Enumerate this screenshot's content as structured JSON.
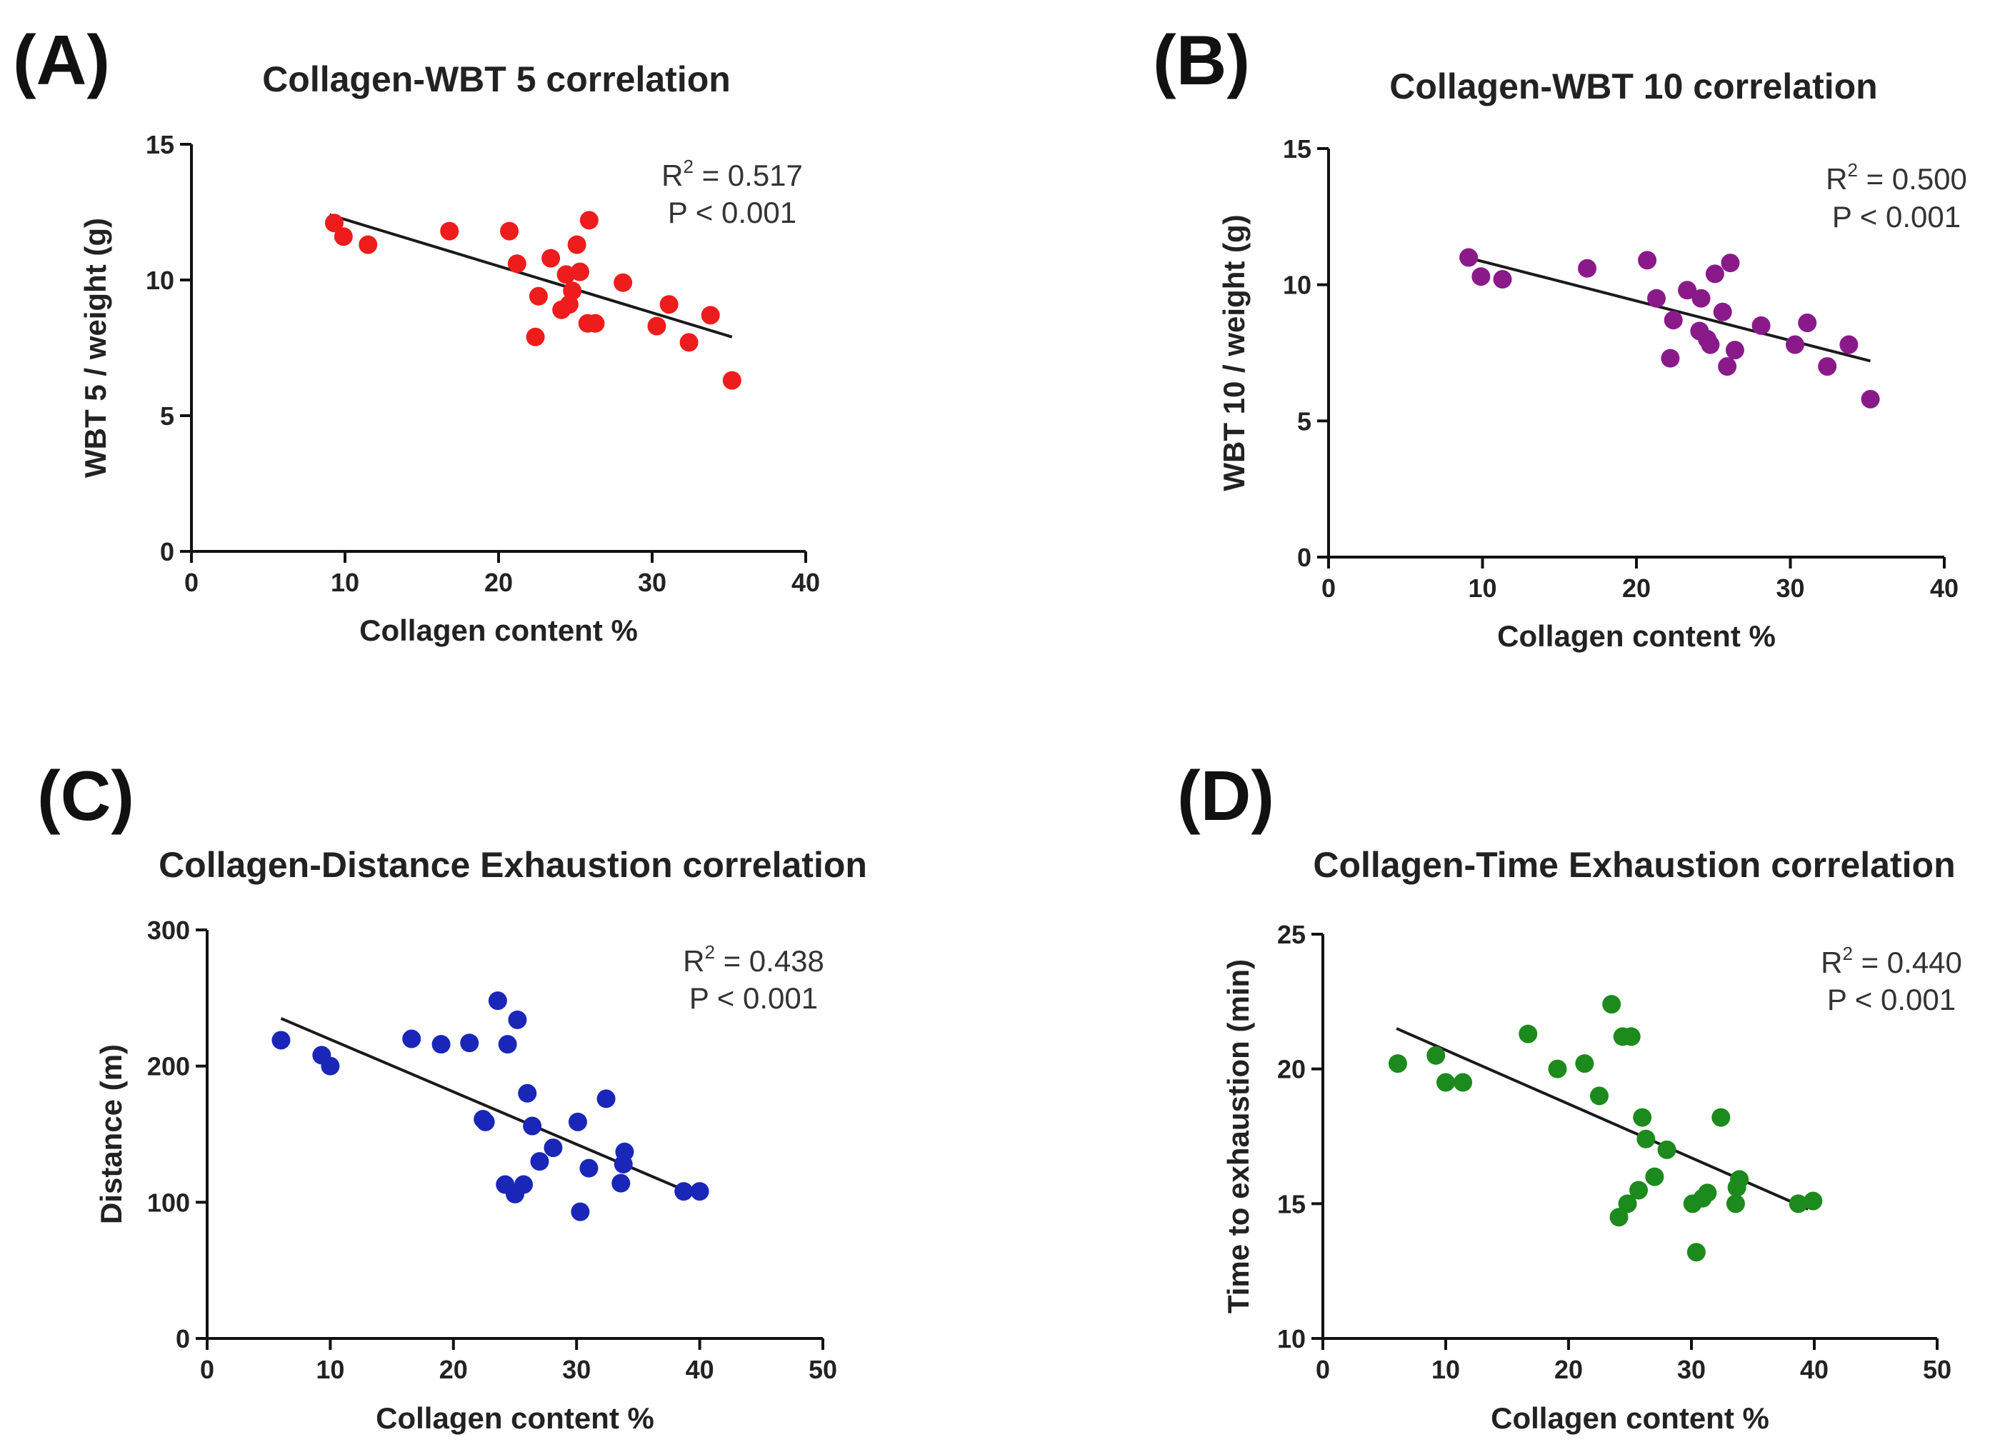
{
  "chart_data": [
    {
      "type": "scatter",
      "panel_label": "(A)",
      "title": "Collagen-WBT 5 correlation",
      "xlabel": "Collagen content %",
      "ylabel": "WBT 5 / weight (g)",
      "xlim": [
        0,
        40
      ],
      "ylim": [
        0,
        15
      ],
      "xticks": [
        0,
        10,
        20,
        30,
        40
      ],
      "yticks": [
        0,
        5,
        10,
        15
      ],
      "color": "#ee1c1c",
      "stats": {
        "r2_prefix": "R",
        "r2_sup": "2",
        "r2_value": " = 0.517",
        "p_text": "P < 0.001"
      },
      "fit": {
        "x": [
          9,
          35.2
        ],
        "y": [
          12.4,
          7.9
        ]
      },
      "x": [
        9.3,
        9.9,
        11.5,
        16.8,
        20.7,
        21.2,
        22.4,
        22.6,
        23.4,
        24.1,
        24.4,
        24.6,
        24.8,
        25.1,
        25.3,
        25.8,
        25.9,
        26.3,
        28.1,
        30.3,
        31.1,
        32.4,
        33.8,
        35.2
      ],
      "y": [
        12.1,
        11.6,
        11.3,
        11.8,
        11.8,
        10.6,
        7.9,
        9.4,
        10.8,
        8.9,
        10.2,
        9.1,
        9.6,
        11.3,
        10.3,
        8.4,
        12.2,
        8.4,
        9.9,
        8.3,
        9.1,
        7.7,
        8.7,
        6.3
      ]
    },
    {
      "type": "scatter",
      "panel_label": "(B)",
      "title": "Collagen-WBT 10 correlation",
      "xlabel": "Collagen content %",
      "ylabel": "WBT 10 / weight (g)",
      "xlim": [
        0,
        40
      ],
      "ylim": [
        0,
        15
      ],
      "xticks": [
        0,
        10,
        20,
        30,
        40
      ],
      "yticks": [
        0,
        5,
        10,
        15
      ],
      "color": "#8a1a8a",
      "stats": {
        "r2_prefix": "R",
        "r2_sup": "2",
        "r2_value": " = 0.500",
        "p_text": "P < 0.001"
      },
      "fit": {
        "x": [
          9,
          35.2
        ],
        "y": [
          11.0,
          7.2
        ]
      },
      "x": [
        9.1,
        9.9,
        11.3,
        16.8,
        20.7,
        21.3,
        22.2,
        22.4,
        23.3,
        24.1,
        24.2,
        24.6,
        24.8,
        25.1,
        25.6,
        25.9,
        26.1,
        26.4,
        28.1,
        30.3,
        31.1,
        32.4,
        33.8,
        35.2
      ],
      "y": [
        11.0,
        10.3,
        10.2,
        10.6,
        10.9,
        9.5,
        7.3,
        8.7,
        9.8,
        8.3,
        9.5,
        8.0,
        7.8,
        10.4,
        9.0,
        7.0,
        10.8,
        7.6,
        8.5,
        7.8,
        8.6,
        7.0,
        7.8,
        5.8
      ]
    },
    {
      "type": "scatter",
      "panel_label": "(C)",
      "title": "Collagen-Distance Exhaustion correlation",
      "xlabel": "Collagen content %",
      "ylabel": "Distance (m)",
      "xlim": [
        0,
        50
      ],
      "ylim": [
        0,
        300
      ],
      "xticks": [
        0,
        10,
        20,
        30,
        40,
        50
      ],
      "yticks": [
        0,
        100,
        200,
        300
      ],
      "color": "#1a26b8",
      "stats": {
        "r2_prefix": "R",
        "r2_sup": "2",
        "r2_value": " = 0.438",
        "p_text": "P < 0.001"
      },
      "fit": {
        "x": [
          6,
          39.5
        ],
        "y": [
          235,
          106
        ]
      },
      "x": [
        6.0,
        9.3,
        10.0,
        16.6,
        19.0,
        21.3,
        22.4,
        22.6,
        23.6,
        24.2,
        24.4,
        25.0,
        25.2,
        25.7,
        26.0,
        26.4,
        27.0,
        28.1,
        30.1,
        30.3,
        31.0,
        32.4,
        33.6,
        33.8,
        33.9,
        38.7,
        40.0
      ],
      "y": [
        219,
        208,
        200,
        220,
        216,
        217,
        161,
        159,
        248,
        113,
        216,
        106,
        234,
        113,
        180,
        156,
        130,
        140,
        159,
        93,
        125,
        176,
        114,
        128,
        137,
        108,
        108
      ]
    },
    {
      "type": "scatter",
      "panel_label": "(D)",
      "title": "Collagen-Time Exhaustion correlation",
      "xlabel": "Collagen content %",
      "ylabel": "Time to exhaustion (min)",
      "xlim": [
        0,
        50
      ],
      "ylim": [
        10,
        25
      ],
      "xticks": [
        0,
        10,
        20,
        30,
        40,
        50
      ],
      "yticks": [
        10,
        15,
        20,
        25
      ],
      "color": "#1c8a1c",
      "stats": {
        "r2_prefix": "R",
        "r2_sup": "2",
        "r2_value": " = 0.440",
        "p_text": "P < 0.001"
      },
      "fit": {
        "x": [
          6,
          39.5
        ],
        "y": [
          21.5,
          14.8
        ]
      },
      "x": [
        6.1,
        9.2,
        10.0,
        11.4,
        16.7,
        19.1,
        21.3,
        22.5,
        23.5,
        24.1,
        24.4,
        24.8,
        25.1,
        25.7,
        26.0,
        26.3,
        27.0,
        28.0,
        30.1,
        30.4,
        30.9,
        31.3,
        32.4,
        33.6,
        33.7,
        33.9,
        38.7,
        39.9
      ],
      "y": [
        20.2,
        20.5,
        19.5,
        19.5,
        21.3,
        20.0,
        20.2,
        19.0,
        22.4,
        14.5,
        21.2,
        15.0,
        21.2,
        15.5,
        18.2,
        17.4,
        16.0,
        17.0,
        15.0,
        13.2,
        15.2,
        15.4,
        18.2,
        15.0,
        15.6,
        15.9,
        15.0,
        15.1
      ]
    }
  ]
}
